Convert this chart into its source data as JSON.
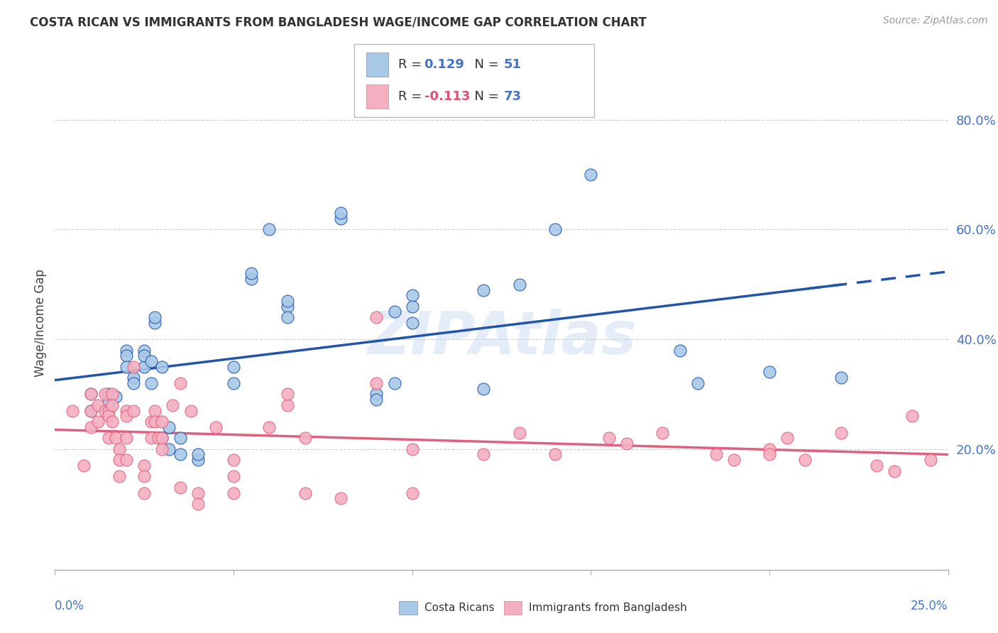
{
  "title": "COSTA RICAN VS IMMIGRANTS FROM BANGLADESH WAGE/INCOME GAP CORRELATION CHART",
  "source": "Source: ZipAtlas.com",
  "ylabel": "Wage/Income Gap",
  "right_ytick_vals": [
    0.2,
    0.4,
    0.6,
    0.8
  ],
  "right_ytick_labels": [
    "20.0%",
    "40.0%",
    "60.0%",
    "80.0%"
  ],
  "legend_blue_r": "0.129",
  "legend_blue_n": "51",
  "legend_pink_r": "-0.113",
  "legend_pink_n": "73",
  "legend_bottom_blue": "Costa Ricans",
  "legend_bottom_pink": "Immigrants from Bangladesh",
  "watermark": "ZIPAtlas",
  "blue_color": "#A8C8E8",
  "pink_color": "#F4B0C0",
  "trend_blue_color": "#2255AA",
  "trend_pink_color": "#E06080",
  "xlim": [
    0.0,
    0.25
  ],
  "ylim": [
    -0.02,
    0.88
  ],
  "blue_scatter_x": [
    0.01,
    0.01,
    0.015,
    0.015,
    0.017,
    0.02,
    0.02,
    0.02,
    0.022,
    0.022,
    0.025,
    0.025,
    0.025,
    0.027,
    0.027,
    0.028,
    0.028,
    0.03,
    0.03,
    0.032,
    0.032,
    0.035,
    0.035,
    0.04,
    0.04,
    0.05,
    0.05,
    0.055,
    0.055,
    0.06,
    0.065,
    0.065,
    0.065,
    0.08,
    0.08,
    0.09,
    0.09,
    0.095,
    0.095,
    0.1,
    0.1,
    0.1,
    0.12,
    0.12,
    0.13,
    0.14,
    0.15,
    0.175,
    0.18,
    0.2,
    0.22
  ],
  "blue_scatter_y": [
    0.3,
    0.27,
    0.3,
    0.285,
    0.295,
    0.38,
    0.37,
    0.35,
    0.33,
    0.32,
    0.35,
    0.38,
    0.37,
    0.32,
    0.36,
    0.43,
    0.44,
    0.35,
    0.22,
    0.2,
    0.24,
    0.22,
    0.19,
    0.18,
    0.19,
    0.35,
    0.32,
    0.51,
    0.52,
    0.6,
    0.46,
    0.44,
    0.47,
    0.62,
    0.63,
    0.3,
    0.29,
    0.32,
    0.45,
    0.43,
    0.48,
    0.46,
    0.31,
    0.49,
    0.5,
    0.6,
    0.7,
    0.38,
    0.32,
    0.34,
    0.33
  ],
  "pink_scatter_x": [
    0.005,
    0.008,
    0.01,
    0.01,
    0.01,
    0.012,
    0.012,
    0.014,
    0.014,
    0.015,
    0.015,
    0.015,
    0.016,
    0.016,
    0.016,
    0.017,
    0.018,
    0.018,
    0.018,
    0.02,
    0.02,
    0.02,
    0.02,
    0.022,
    0.022,
    0.025,
    0.025,
    0.025,
    0.027,
    0.027,
    0.028,
    0.028,
    0.029,
    0.03,
    0.03,
    0.03,
    0.033,
    0.035,
    0.035,
    0.038,
    0.04,
    0.04,
    0.045,
    0.05,
    0.05,
    0.05,
    0.06,
    0.065,
    0.065,
    0.07,
    0.07,
    0.08,
    0.09,
    0.09,
    0.1,
    0.1,
    0.12,
    0.13,
    0.14,
    0.155,
    0.16,
    0.17,
    0.185,
    0.19,
    0.2,
    0.2,
    0.205,
    0.21,
    0.22,
    0.23,
    0.235,
    0.24,
    0.245
  ],
  "pink_scatter_y": [
    0.27,
    0.17,
    0.3,
    0.27,
    0.24,
    0.28,
    0.25,
    0.3,
    0.27,
    0.27,
    0.26,
    0.22,
    0.3,
    0.28,
    0.25,
    0.22,
    0.2,
    0.18,
    0.15,
    0.27,
    0.26,
    0.22,
    0.18,
    0.35,
    0.27,
    0.17,
    0.15,
    0.12,
    0.25,
    0.22,
    0.27,
    0.25,
    0.22,
    0.25,
    0.22,
    0.2,
    0.28,
    0.32,
    0.13,
    0.27,
    0.12,
    0.1,
    0.24,
    0.18,
    0.15,
    0.12,
    0.24,
    0.28,
    0.3,
    0.22,
    0.12,
    0.11,
    0.44,
    0.32,
    0.2,
    0.12,
    0.19,
    0.23,
    0.19,
    0.22,
    0.21,
    0.23,
    0.19,
    0.18,
    0.2,
    0.19,
    0.22,
    0.18,
    0.23,
    0.17,
    0.16,
    0.26,
    0.18
  ]
}
